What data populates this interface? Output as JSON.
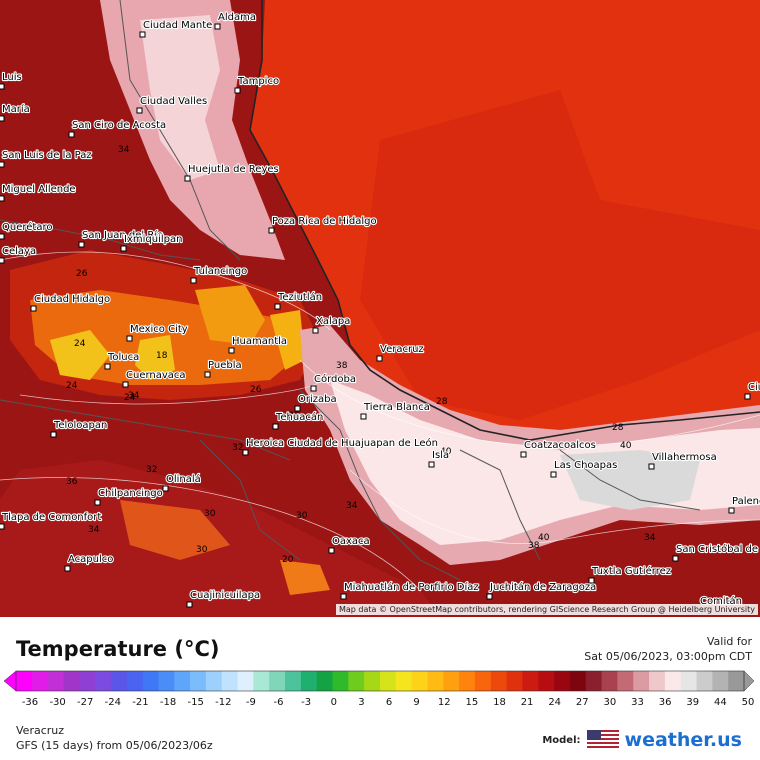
{
  "map": {
    "credit": "Map data © OpenStreetMap contributors, rendering GIScience Research Group @ Heidelberg University",
    "cities": [
      {
        "name": "Aldama"
      },
      {
        "name": "Ciudad Mante"
      },
      {
        "name": "Luis"
      },
      {
        "name": "Tampico"
      },
      {
        "name": "María"
      },
      {
        "name": "Ciudad Valles"
      },
      {
        "name": "San Ciro de Acosta"
      },
      {
        "name": "San Luis de la Paz"
      },
      {
        "name": "Huejutla de Reyes"
      },
      {
        "name": "Miguel Allende"
      },
      {
        "name": "Querétaro"
      },
      {
        "name": "San Juan del Río"
      },
      {
        "name": "Ixmiquilpan"
      },
      {
        "name": "Poza Rica de Hidalgo"
      },
      {
        "name": "Celaya"
      },
      {
        "name": "Tulancingo"
      },
      {
        "name": "Ciudad Hidalgo"
      },
      {
        "name": "Teziutlán"
      },
      {
        "name": "Mexico City"
      },
      {
        "name": "Xalapa"
      },
      {
        "name": "Huamantla"
      },
      {
        "name": "Toluca"
      },
      {
        "name": "Veracruz"
      },
      {
        "name": "Cuernavaca"
      },
      {
        "name": "Puebla"
      },
      {
        "name": "Córdoba"
      },
      {
        "name": "Orizaba"
      },
      {
        "name": "Tierra Blanca"
      },
      {
        "name": "Tehuacán"
      },
      {
        "name": "Teloloapan"
      },
      {
        "name": "Heroica Ciudad de Huajuapan de León"
      },
      {
        "name": "Coatzacoalcos"
      },
      {
        "name": "Isla"
      },
      {
        "name": "Las Choapas"
      },
      {
        "name": "Villahermosa"
      },
      {
        "name": "Ciudad del Carmen"
      },
      {
        "name": "Olinalá"
      },
      {
        "name": "Chilpancingo"
      },
      {
        "name": "Palenque"
      },
      {
        "name": "Tlapa de Comonfort"
      },
      {
        "name": "Acapulco"
      },
      {
        "name": "Oaxaca"
      },
      {
        "name": "San Cristóbal de Las Casas"
      },
      {
        "name": "Tuxtla Gutiérrez"
      },
      {
        "name": "Miahuatlán de Porfirio Díaz"
      },
      {
        "name": "Juchitán de Zaragoza"
      },
      {
        "name": "Cuajinicuilapa"
      },
      {
        "name": "Comitán"
      }
    ],
    "contour_labels": [
      "34",
      "26",
      "24",
      "18",
      "24",
      "24",
      "34",
      "26",
      "38",
      "38",
      "40",
      "36",
      "34",
      "32",
      "30",
      "30",
      "40",
      "38",
      "40",
      "34",
      "34",
      "28",
      "32",
      "30",
      "20",
      "28"
    ]
  },
  "legend": {
    "title": "Temperature (°C)",
    "valid_label": "Valid for",
    "valid_time": "Sat 05/06/2023, 03:00pm CDT",
    "ticks": [
      "-36",
      "-30",
      "-27",
      "-24",
      "-21",
      "-18",
      "-15",
      "-12",
      "-9",
      "-6",
      "-3",
      "0",
      "3",
      "6",
      "9",
      "12",
      "15",
      "18",
      "21",
      "24",
      "27",
      "30",
      "33",
      "36",
      "39",
      "44",
      "50"
    ],
    "colors": [
      "#ff00ff",
      "#e21ce8",
      "#c22fd6",
      "#a135c9",
      "#8f3fd4",
      "#7c4be0",
      "#5b55e8",
      "#4a63f0",
      "#3f77f5",
      "#4a8df8",
      "#5ea6fb",
      "#7bbcfc",
      "#9dd0fd",
      "#bfe2fe",
      "#def0fe",
      "#a8e8d4",
      "#7fd6b8",
      "#4cc39a",
      "#1fb070",
      "#14a344",
      "#2eba2a",
      "#6fcc1f",
      "#a6d816",
      "#d6e31a",
      "#f5e51e",
      "#ffd21a",
      "#ffbb14",
      "#ffa010",
      "#ff830d",
      "#f8650c",
      "#ec4a0c",
      "#df310e",
      "#cc1b10",
      "#b60c12",
      "#9a0510",
      "#7d050e",
      "#8c1f2e",
      "#a8424f",
      "#c46a75",
      "#dc9aa2",
      "#efc8cc",
      "#fbe8e9",
      "#e6e6e6",
      "#cccccc",
      "#b3b3b3",
      "#999999"
    ]
  },
  "footer": {
    "region": "Veracruz",
    "model_run": "GFS (15 days) from  05/06/2023/06z",
    "model_label": "Model:",
    "brand": "weather.us"
  }
}
